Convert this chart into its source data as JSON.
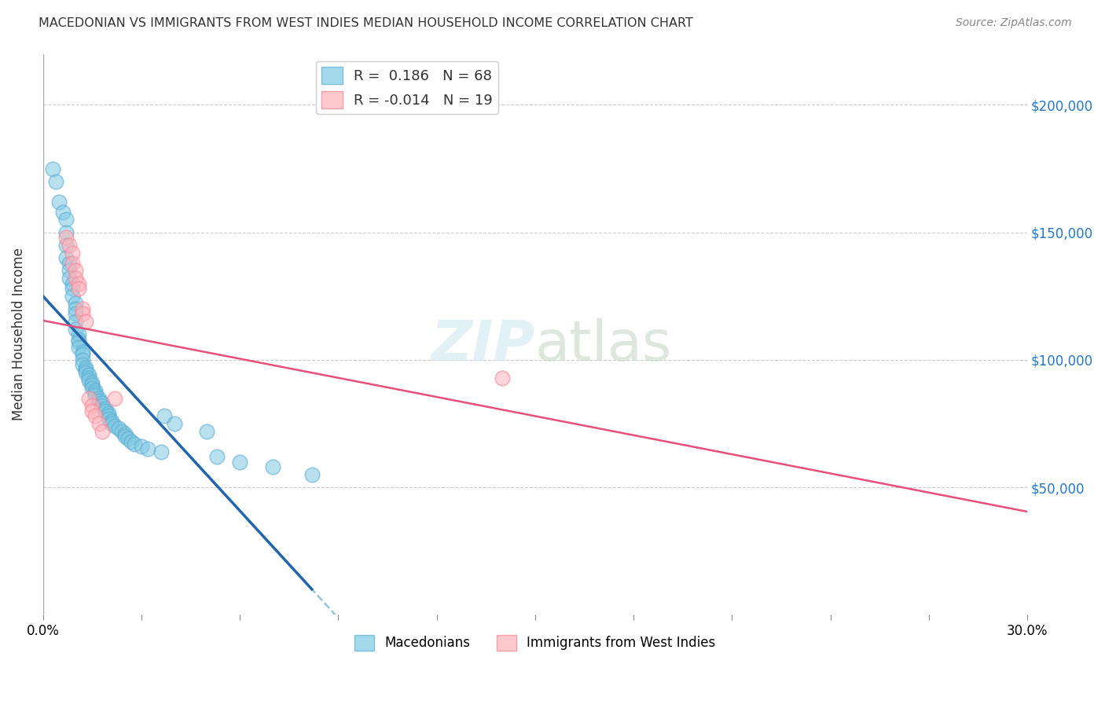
{
  "title": "MACEDONIAN VS IMMIGRANTS FROM WEST INDIES MEDIAN HOUSEHOLD INCOME CORRELATION CHART",
  "source": "Source: ZipAtlas.com",
  "ylabel": "Median Household Income",
  "xlim": [
    0.0,
    0.3
  ],
  "ylim": [
    0,
    220000
  ],
  "yticks": [
    0,
    50000,
    100000,
    150000,
    200000
  ],
  "ytick_labels": [
    "",
    "$50,000",
    "$100,000",
    "$150,000",
    "$200,000"
  ],
  "background_color": "#ffffff",
  "grid_color": "#cccccc",
  "macedonian_color": "#7ec8e3",
  "westindies_color": "#ffb3ba",
  "macedonian_edge_color": "#5aabcf",
  "westindies_edge_color": "#ff8090",
  "macedonian_line_color": "#2166ac",
  "westindies_line_color": "#e8507a",
  "dashed_line_color": "#93c6e0",
  "R_macedonian": 0.186,
  "N_macedonian": 68,
  "R_westindies": -0.014,
  "N_westindies": 19,
  "macedonian_x": [
    0.003,
    0.004,
    0.005,
    0.006,
    0.007,
    0.007,
    0.007,
    0.007,
    0.008,
    0.008,
    0.008,
    0.009,
    0.009,
    0.009,
    0.01,
    0.01,
    0.01,
    0.01,
    0.01,
    0.011,
    0.011,
    0.011,
    0.011,
    0.012,
    0.012,
    0.012,
    0.012,
    0.013,
    0.013,
    0.013,
    0.014,
    0.014,
    0.014,
    0.015,
    0.015,
    0.015,
    0.016,
    0.016,
    0.016,
    0.017,
    0.017,
    0.018,
    0.018,
    0.019,
    0.019,
    0.02,
    0.02,
    0.02,
    0.021,
    0.021,
    0.022,
    0.023,
    0.024,
    0.025,
    0.025,
    0.026,
    0.027,
    0.028,
    0.03,
    0.032,
    0.036,
    0.037,
    0.04,
    0.05,
    0.053,
    0.06,
    0.07,
    0.082
  ],
  "macedonian_y": [
    175000,
    170000,
    162000,
    158000,
    155000,
    150000,
    145000,
    140000,
    138000,
    135000,
    132000,
    130000,
    128000,
    125000,
    122000,
    120000,
    118000,
    115000,
    112000,
    110000,
    108000,
    107000,
    105000,
    103000,
    102000,
    100000,
    98000,
    97000,
    96000,
    95000,
    94000,
    93000,
    92000,
    91000,
    90000,
    89000,
    88000,
    87000,
    86000,
    85000,
    84000,
    83000,
    82000,
    81000,
    80000,
    79000,
    78000,
    77000,
    76000,
    75000,
    74000,
    73000,
    72000,
    71000,
    70000,
    69000,
    68000,
    67000,
    66000,
    65000,
    64000,
    78000,
    75000,
    72000,
    62000,
    60000,
    58000,
    55000
  ],
  "westindies_x": [
    0.007,
    0.008,
    0.009,
    0.009,
    0.01,
    0.01,
    0.011,
    0.011,
    0.012,
    0.012,
    0.013,
    0.014,
    0.015,
    0.015,
    0.016,
    0.017,
    0.018,
    0.022,
    0.14
  ],
  "westindies_y": [
    148000,
    145000,
    142000,
    138000,
    135000,
    132000,
    130000,
    128000,
    120000,
    118000,
    115000,
    85000,
    82000,
    80000,
    78000,
    75000,
    72000,
    85000,
    93000
  ]
}
